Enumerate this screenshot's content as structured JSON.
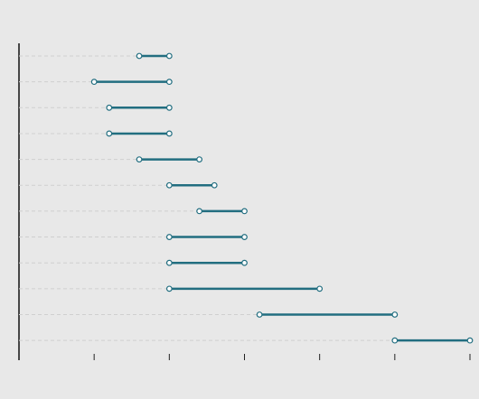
{
  "chart_data": {
    "type": "dumbbell",
    "categories": [
      null,
      null,
      null,
      null,
      null,
      null,
      null,
      null,
      null,
      null,
      null,
      null
    ],
    "series": [
      {
        "color": "#226e80",
        "values": [
          1.6,
          1.0,
          1.2,
          1.2,
          1.6,
          2.0,
          2.4,
          2.0,
          2.0,
          2.0,
          3.2,
          5.0
        ]
      },
      {
        "color": "#226e80",
        "values": [
          2.0,
          2.0,
          2.0,
          2.0,
          2.4,
          2.6,
          3.0,
          3.0,
          3.0,
          4.0,
          5.0,
          6.0
        ]
      }
    ],
    "xlim": [
      0,
      6
    ],
    "xticks": [
      0,
      1,
      2,
      3,
      4,
      5,
      6
    ],
    "grid": true
  }
}
